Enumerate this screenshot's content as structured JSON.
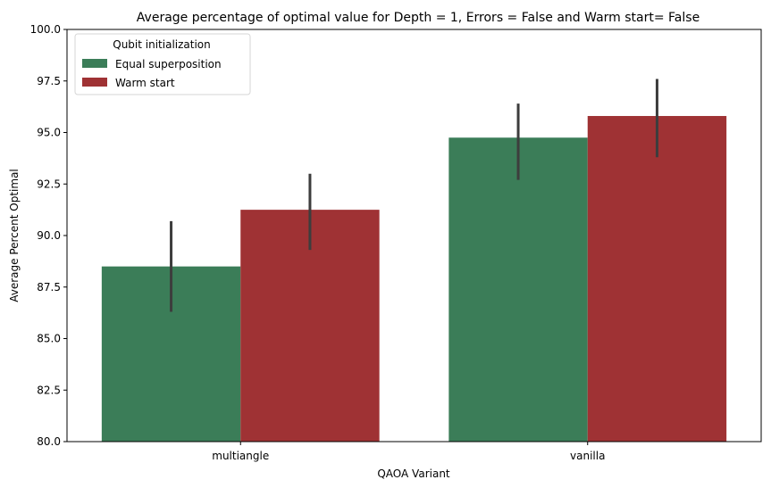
{
  "chart_data": {
    "type": "bar",
    "title": "Average percentage of optimal value for Depth = 1, Errors = False and Warm start= False",
    "xlabel": "QAOA Variant",
    "ylabel": "Average Percent Optimal",
    "categories": [
      "multiangle",
      "vanilla"
    ],
    "ylim": [
      80.0,
      100.0
    ],
    "yticks": [
      "80.0",
      "82.5",
      "85.0",
      "87.5",
      "90.0",
      "92.5",
      "95.0",
      "97.5",
      "100.0"
    ],
    "legend": {
      "title": "Qubit initialization",
      "placement": "top-left"
    },
    "series": [
      {
        "name": "Equal superposition",
        "color": "#3b7d58",
        "values": [
          88.5,
          94.75
        ],
        "error_low": [
          86.3,
          92.7
        ],
        "error_high": [
          90.7,
          96.4
        ]
      },
      {
        "name": "Warm start",
        "color": "#9f3234",
        "values": [
          91.25,
          95.8
        ],
        "error_low": [
          89.3,
          93.8
        ],
        "error_high": [
          93.0,
          97.6
        ]
      }
    ],
    "grid": false
  }
}
